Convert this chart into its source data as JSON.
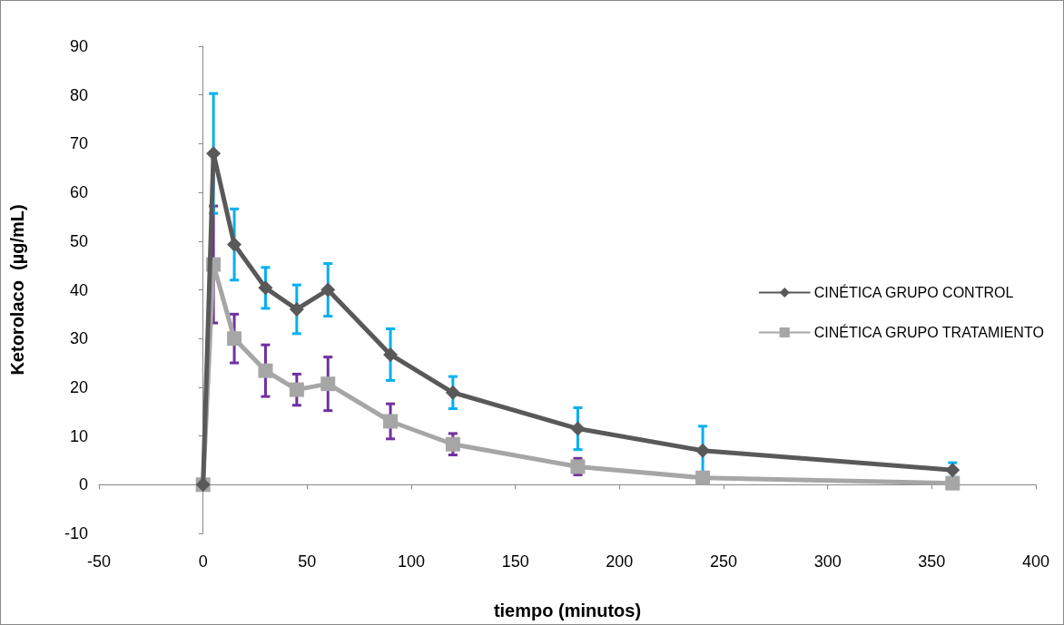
{
  "chart_data": {
    "type": "line",
    "xlabel": "tiempo (minutos)",
    "ylabel": "Ketorolaco  (µg/mL)",
    "x": [
      0,
      5,
      15,
      30,
      45,
      60,
      90,
      120,
      180,
      240,
      360
    ],
    "series": [
      {
        "name": "CINÉTICA GRUPO CONTROL",
        "color": "#595959",
        "marker": "diamond",
        "values": [
          0,
          68,
          49.3,
          40.4,
          36,
          40,
          26.7,
          18.9,
          11.5,
          7,
          3
        ],
        "errors": [
          null,
          12.3,
          7.3,
          4.2,
          5,
          5.4,
          5.3,
          3.3,
          4.3,
          5,
          1.5
        ]
      },
      {
        "name": "CINÉTICA GRUPO TRATAMIENTO",
        "color": "#a6a6a6",
        "marker": "square",
        "values": [
          0,
          45.2,
          30,
          23.4,
          19.5,
          20.7,
          13,
          8.3,
          3.7,
          1.4,
          0.3
        ],
        "errors": [
          null,
          12,
          5,
          5.3,
          3.2,
          5.5,
          3.6,
          2.2,
          1.7,
          null,
          null
        ]
      }
    ],
    "xlim": [
      -50,
      400
    ],
    "xticks": [
      -50,
      0,
      50,
      100,
      150,
      200,
      250,
      300,
      350,
      400
    ],
    "ylim": [
      -10,
      90
    ],
    "yticks": [
      -10,
      0,
      10,
      20,
      30,
      40,
      50,
      60,
      70,
      80,
      90
    ],
    "legend": "right",
    "line_style": "solid"
  }
}
